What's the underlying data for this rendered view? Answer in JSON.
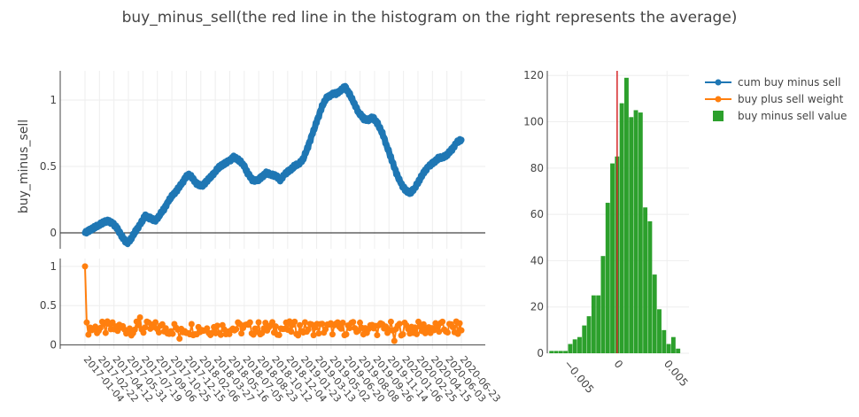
{
  "chart_data": [
    {
      "type": "scatter",
      "title": "buy_minus_sell(the red line in the histogram on the right represents the average)",
      "ylabel": "buy_minus_sell",
      "ylim": [
        -0.12,
        1.22
      ],
      "yticks": [
        "0",
        "0.5",
        "1"
      ],
      "series": [
        {
          "name": "cum buy minus sell",
          "color": "#1f77b4",
          "mode": "lines+markers",
          "values": [
            0.0,
            0.02,
            0.04,
            0.06,
            0.08,
            0.09,
            0.07,
            0.03,
            -0.03,
            -0.08,
            -0.04,
            0.02,
            0.07,
            0.13,
            0.11,
            0.09,
            0.13,
            0.18,
            0.24,
            0.29,
            0.33,
            0.38,
            0.44,
            0.42,
            0.37,
            0.35,
            0.38,
            0.42,
            0.46,
            0.5,
            0.52,
            0.54,
            0.57,
            0.55,
            0.52,
            0.45,
            0.4,
            0.39,
            0.42,
            0.45,
            0.44,
            0.43,
            0.4,
            0.44,
            0.47,
            0.5,
            0.52,
            0.56,
            0.65,
            0.75,
            0.85,
            0.95,
            1.02,
            1.04,
            1.05,
            1.07,
            1.1,
            1.04,
            0.97,
            0.9,
            0.86,
            0.85,
            0.87,
            0.82,
            0.75,
            0.65,
            0.55,
            0.45,
            0.37,
            0.32,
            0.3,
            0.34,
            0.4,
            0.46,
            0.5,
            0.53,
            0.56,
            0.57,
            0.59,
            0.63,
            0.68,
            0.7
          ]
        }
      ]
    },
    {
      "type": "scatter",
      "ylim": [
        -0.05,
        1.1
      ],
      "yticks": [
        "0",
        "0.5",
        "1"
      ],
      "x_tick_labels": [
        "2017-01-04",
        "2017-02-22",
        "2017-04-12",
        "2017-05-31",
        "2017-07-19",
        "2017-09-06",
        "2017-10-25",
        "2017-12-15",
        "2018-02-06",
        "2018-03-27",
        "2018-05-16",
        "2018-07-05",
        "2018-08-23",
        "2018-10-12",
        "2018-12-04",
        "2019-01-23",
        "2019-03-13",
        "2019-05-02",
        "2019-06-20",
        "2019-08-08",
        "2019-09-26",
        "2019-11-14",
        "2020-01-06",
        "2020-02-25",
        "2020-04-15",
        "2020-06-03",
        "2020-06-23"
      ],
      "series": [
        {
          "name": "buy plus sell weight",
          "color": "#ff7f0e",
          "mode": "lines+markers",
          "first_value": 1.0,
          "typical_value": 0.2,
          "band": [
            0.12,
            0.3
          ],
          "outliers": [
            0.35,
            0.08,
            0.05
          ]
        }
      ]
    },
    {
      "type": "bar",
      "subtype": "histogram",
      "series": [
        {
          "name": "buy minus sell value",
          "color": "#2ca02c",
          "bin_start": -0.0068,
          "bin_width": 0.00047,
          "counts": [
            1,
            1,
            1,
            1,
            4,
            6,
            7,
            12,
            16,
            25,
            25,
            42,
            65,
            82,
            85,
            108,
            119,
            102,
            105,
            104,
            63,
            57,
            34,
            19,
            10,
            4,
            7,
            2
          ]
        }
      ],
      "average": 0.0,
      "average_color": "#d62728",
      "ylim": [
        0,
        122
      ],
      "yticks": [
        "0",
        "20",
        "40",
        "60",
        "80",
        "100",
        "120"
      ],
      "xlim": [
        -0.007,
        0.0072
      ],
      "xticks": [
        "−0.005",
        "0",
        "0.005"
      ]
    }
  ],
  "legend": {
    "placement": "top-right",
    "items": [
      {
        "label": "cum buy minus sell",
        "color": "#1f77b4",
        "kind": "line-marker"
      },
      {
        "label": "buy plus sell weight",
        "color": "#ff7f0e",
        "kind": "line-marker"
      },
      {
        "label": "buy minus sell value",
        "color": "#2ca02c",
        "kind": "square"
      }
    ]
  }
}
